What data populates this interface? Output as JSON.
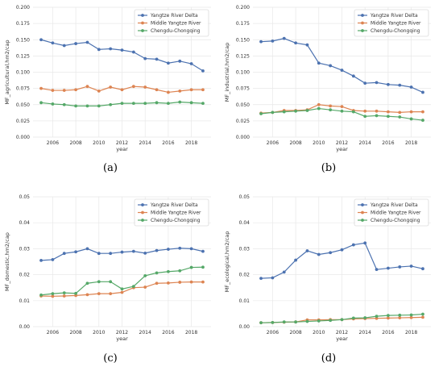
{
  "colors": {
    "yrd": "#4c72b0",
    "myr": "#dd8452",
    "cc": "#55a868",
    "grid": "#e8e8e8"
  },
  "chart_data": [
    {
      "type": "line",
      "panel_label": "(a)",
      "xlabel": "year",
      "ylabel": "MF_agricultural,hm2/cap",
      "ylim": [
        0,
        0.2
      ],
      "yticks": [
        "0.000",
        "0.025",
        "0.050",
        "0.075",
        "0.100",
        "0.125",
        "0.150",
        "0.175",
        "0.200"
      ],
      "xticks": [
        "2006",
        "2008",
        "2010",
        "2012",
        "2014",
        "2016",
        "2018"
      ],
      "legend_position": "top-right",
      "x": [
        2005,
        2006,
        2007,
        2008,
        2009,
        2010,
        2011,
        2012,
        2013,
        2014,
        2015,
        2016,
        2017,
        2018,
        2019
      ],
      "series": [
        {
          "name": "Yangtze River Delta",
          "values": [
            0.15,
            0.145,
            0.141,
            0.144,
            0.146,
            0.135,
            0.136,
            0.134,
            0.131,
            0.121,
            0.12,
            0.114,
            0.117,
            0.113,
            0.102
          ]
        },
        {
          "name": "Middle Yangtze River",
          "values": [
            0.075,
            0.072,
            0.072,
            0.073,
            0.078,
            0.071,
            0.077,
            0.073,
            0.078,
            0.077,
            0.073,
            0.069,
            0.071,
            0.073,
            0.073
          ]
        },
        {
          "name": "Chengdu-Chongqing",
          "values": [
            0.053,
            0.051,
            0.05,
            0.048,
            0.048,
            0.048,
            0.05,
            0.052,
            0.052,
            0.052,
            0.053,
            0.052,
            0.054,
            0.053,
            0.052
          ]
        }
      ]
    },
    {
      "type": "line",
      "panel_label": "(b)",
      "xlabel": "year",
      "ylabel": "MF_industrial,hm2/cap",
      "ylim": [
        0,
        0.2
      ],
      "yticks": [
        "0.000",
        "0.025",
        "0.050",
        "0.075",
        "0.100",
        "0.125",
        "0.150",
        "0.175",
        "0.200"
      ],
      "xticks": [
        "2006",
        "2008",
        "2010",
        "2012",
        "2014",
        "2016",
        "2018"
      ],
      "legend_position": "top-right",
      "x": [
        2005,
        2006,
        2007,
        2008,
        2009,
        2010,
        2011,
        2012,
        2013,
        2014,
        2015,
        2016,
        2017,
        2018,
        2019
      ],
      "series": [
        {
          "name": "Yangtze River Delta",
          "values": [
            0.147,
            0.148,
            0.152,
            0.145,
            0.142,
            0.114,
            0.11,
            0.103,
            0.094,
            0.083,
            0.084,
            0.081,
            0.08,
            0.077,
            0.069
          ]
        },
        {
          "name": "Middle Yangtze River",
          "values": [
            0.037,
            0.038,
            0.041,
            0.041,
            0.042,
            0.05,
            0.048,
            0.047,
            0.041,
            0.04,
            0.04,
            0.039,
            0.038,
            0.039,
            0.039
          ]
        },
        {
          "name": "Chengdu-Chongqing",
          "values": [
            0.036,
            0.038,
            0.039,
            0.04,
            0.041,
            0.044,
            0.042,
            0.04,
            0.039,
            0.032,
            0.033,
            0.032,
            0.031,
            0.028,
            0.026
          ]
        }
      ]
    },
    {
      "type": "line",
      "panel_label": "(c)",
      "xlabel": "year",
      "ylabel": "MF_domestic,hm2/cap",
      "ylim": [
        0,
        0.05
      ],
      "yticks": [
        "0.00",
        "0.01",
        "0.02",
        "0.03",
        "0.04",
        "0.05"
      ],
      "xticks": [
        "2006",
        "2008",
        "2010",
        "2012",
        "2014",
        "2016",
        "2018"
      ],
      "legend_position": "top-right",
      "x": [
        2005,
        2006,
        2007,
        2008,
        2009,
        2010,
        2011,
        2012,
        2013,
        2014,
        2015,
        2016,
        2017,
        2018,
        2019
      ],
      "series": [
        {
          "name": "Yangtze River Delta",
          "values": [
            0.0255,
            0.0258,
            0.0282,
            0.0288,
            0.03,
            0.0282,
            0.0282,
            0.0287,
            0.029,
            0.0283,
            0.0293,
            0.0298,
            0.0302,
            0.03,
            0.029
          ]
        },
        {
          "name": "Middle Yangtze River",
          "values": [
            0.0118,
            0.0117,
            0.0118,
            0.012,
            0.0123,
            0.0127,
            0.0127,
            0.0132,
            0.015,
            0.0152,
            0.0167,
            0.0168,
            0.0171,
            0.0172,
            0.0172
          ]
        },
        {
          "name": "Chengdu-Chongqing",
          "values": [
            0.0122,
            0.0127,
            0.013,
            0.0128,
            0.0167,
            0.0173,
            0.0173,
            0.0145,
            0.0155,
            0.0196,
            0.0207,
            0.0212,
            0.0215,
            0.0228,
            0.0229
          ]
        }
      ]
    },
    {
      "type": "line",
      "panel_label": "(d)",
      "xlabel": "year",
      "ylabel": "MF_ecological,hm2/cap",
      "ylim": [
        0,
        0.05
      ],
      "yticks": [
        "0.00",
        "0.01",
        "0.02",
        "0.03",
        "0.04",
        "0.05"
      ],
      "xticks": [
        "2006",
        "2008",
        "2010",
        "2012",
        "2014",
        "2016",
        "2018"
      ],
      "legend_position": "top-right",
      "x": [
        2005,
        2006,
        2007,
        2008,
        2009,
        2010,
        2011,
        2012,
        2013,
        2014,
        2015,
        2016,
        2017,
        2018,
        2019
      ],
      "series": [
        {
          "name": "Yangtze River Delta",
          "values": [
            0.0186,
            0.0188,
            0.021,
            0.0256,
            0.0292,
            0.0278,
            0.0285,
            0.0296,
            0.0315,
            0.0322,
            0.022,
            0.0225,
            0.023,
            0.0233,
            0.0223
          ]
        },
        {
          "name": "Middle Yangtze River",
          "values": [
            0.0015,
            0.0016,
            0.0017,
            0.0018,
            0.0026,
            0.0026,
            0.0027,
            0.0027,
            0.003,
            0.0031,
            0.0032,
            0.0033,
            0.0034,
            0.0035,
            0.0036
          ]
        },
        {
          "name": "Chengdu-Chongqing",
          "values": [
            0.0015,
            0.0016,
            0.0018,
            0.0018,
            0.002,
            0.0022,
            0.0024,
            0.0027,
            0.0033,
            0.0034,
            0.004,
            0.0043,
            0.0044,
            0.0045,
            0.0048
          ]
        }
      ]
    }
  ]
}
